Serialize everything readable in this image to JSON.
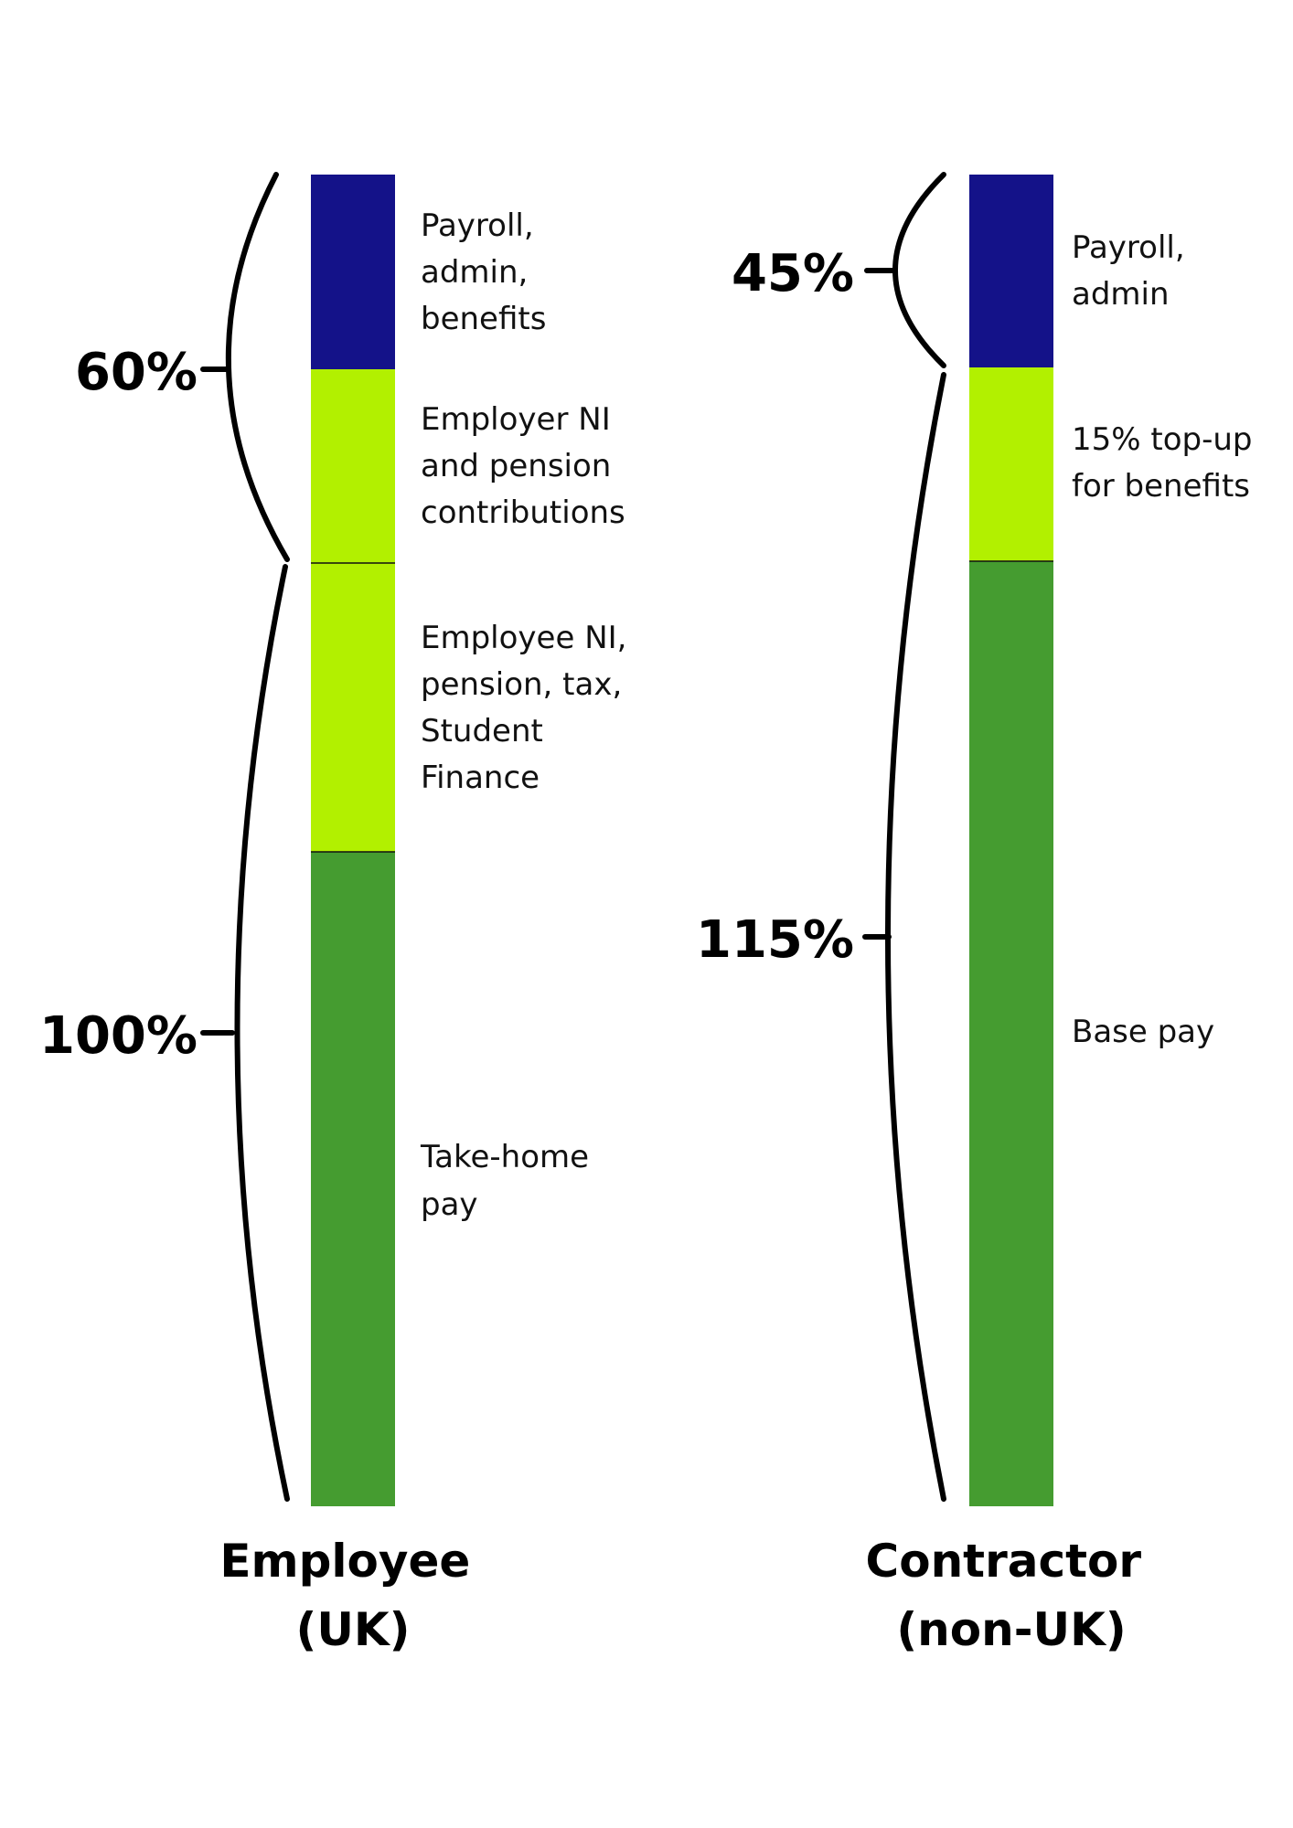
{
  "colors": {
    "admin": "#141289",
    "ni": "#b2f000",
    "pay": "#459c30"
  },
  "employee": {
    "title": [
      "Employee",
      "(UK)"
    ],
    "segments": [
      {
        "key": "admin",
        "label": [
          "Payroll,",
          "admin,",
          "benefits"
        ]
      },
      {
        "key": "ni",
        "label": [
          "Employer NI",
          "and pension",
          "contributions"
        ]
      },
      {
        "key": "ni",
        "label": [
          "Employee NI,",
          "pension, tax,",
          "Student",
          "Finance"
        ]
      },
      {
        "key": "pay",
        "label": [
          "Take-home",
          "pay"
        ]
      }
    ],
    "braces": [
      {
        "label": "60%"
      },
      {
        "label": "100%"
      }
    ]
  },
  "contractor": {
    "title": [
      "Contractor",
      "(non-UK)"
    ],
    "segments": [
      {
        "key": "admin",
        "label": [
          "Payroll,",
          "admin"
        ]
      },
      {
        "key": "ni",
        "label": [
          "15% top-up",
          "for benefits"
        ]
      },
      {
        "key": "pay",
        "label": [
          "Base pay"
        ]
      }
    ],
    "braces": [
      {
        "label": "45%"
      },
      {
        "label": "115%"
      }
    ]
  }
}
